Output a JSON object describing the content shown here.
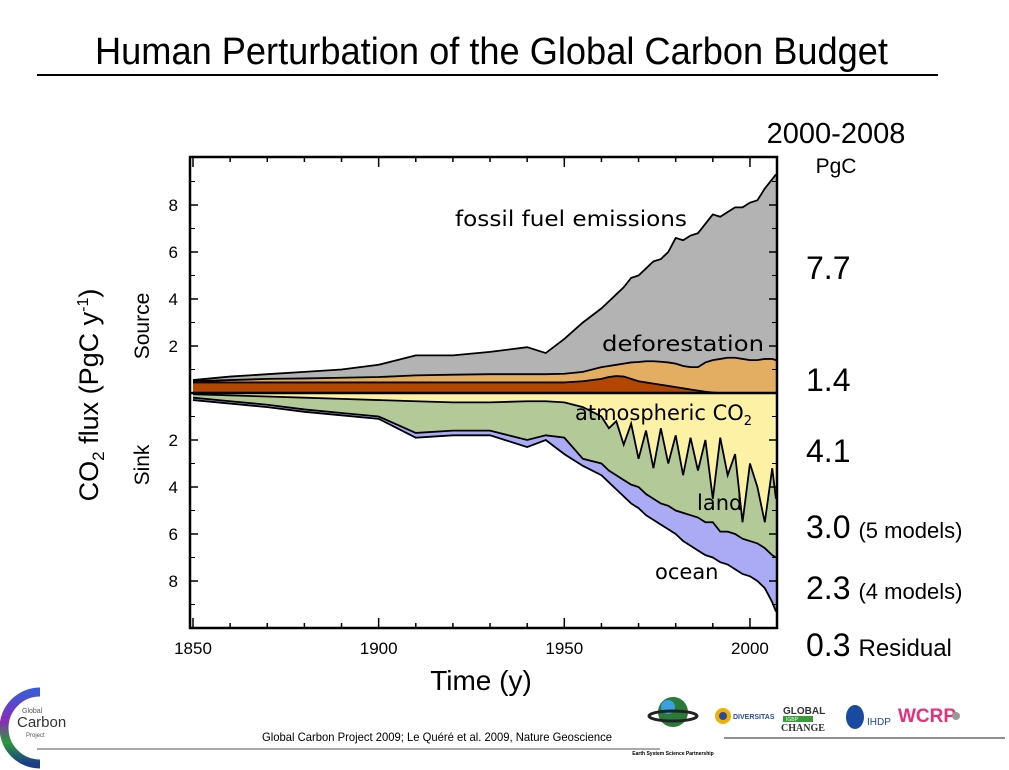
{
  "title": "Human Perturbation of the Global Carbon Budget",
  "chart_data": {
    "type": "area",
    "stacked": true,
    "xlabel": "Time (y)",
    "ylabel": {
      "main": "CO",
      "sub": "2",
      "rest": " flux (PgC y",
      "sup": "-1",
      "end": ")"
    },
    "ylabel_source": "Source",
    "ylabel_sink": "Sink",
    "xlim": [
      1850,
      2007
    ],
    "ylim": [
      -9.5,
      9.8
    ],
    "x_ticks": [
      1850,
      1900,
      1950,
      2000
    ],
    "y_ticks_source": [
      2,
      4,
      6,
      8
    ],
    "y_ticks_sink": [
      2,
      4,
      6,
      8
    ],
    "x": [
      1850,
      1860,
      1870,
      1880,
      1890,
      1900,
      1910,
      1920,
      1930,
      1940,
      1945,
      1950,
      1955,
      1960,
      1962,
      1964,
      1966,
      1968,
      1970,
      1972,
      1974,
      1976,
      1978,
      1980,
      1982,
      1984,
      1986,
      1988,
      1990,
      1992,
      1994,
      1996,
      1998,
      2000,
      2002,
      2004,
      2006,
      2007
    ],
    "sources": [
      {
        "color": "#b34700",
        "values": [
          0.45,
          0.45,
          0.45,
          0.45,
          0.45,
          0.45,
          0.45,
          0.45,
          0.45,
          0.45,
          0.45,
          0.45,
          0.5,
          0.6,
          0.68,
          0.72,
          0.7,
          0.6,
          0.5,
          0.45,
          0.4,
          0.35,
          0.3,
          0.25,
          0.2,
          0.15,
          0.1,
          0.05,
          0.02,
          0,
          0,
          0,
          0,
          0,
          0,
          0,
          0,
          0
        ]
      },
      {
        "name": "deforestation",
        "color": "#e3ad62",
        "values": [
          0.05,
          0.1,
          0.15,
          0.17,
          0.2,
          0.23,
          0.3,
          0.33,
          0.35,
          0.35,
          0.35,
          0.37,
          0.4,
          0.5,
          0.47,
          0.48,
          0.55,
          0.7,
          0.82,
          0.9,
          0.95,
          0.98,
          1.0,
          1.0,
          0.95,
          0.95,
          1.0,
          1.25,
          1.38,
          1.45,
          1.5,
          1.5,
          1.45,
          1.4,
          1.4,
          1.45,
          1.45,
          1.4
        ]
      },
      {
        "name": "fossil fuel emissions",
        "color": "#b3b3b3",
        "values": [
          0.05,
          0.15,
          0.2,
          0.28,
          0.35,
          0.52,
          0.85,
          0.82,
          0.95,
          1.15,
          0.9,
          1.48,
          2.1,
          2.5,
          2.75,
          3.0,
          3.25,
          3.6,
          3.68,
          3.95,
          4.25,
          4.37,
          4.7,
          5.35,
          5.35,
          5.6,
          5.7,
          5.9,
          6.2,
          6.05,
          6.2,
          6.4,
          6.45,
          6.7,
          6.8,
          7.25,
          7.65,
          7.9
        ]
      }
    ],
    "sinks": [
      {
        "name": "atmospheric CO2",
        "label_main": "atmospheric CO",
        "label_sub": "2",
        "color": "#fdf1a6",
        "values": [
          0.05,
          0.1,
          0.15,
          0.2,
          0.25,
          0.3,
          0.35,
          0.4,
          0.4,
          0.35,
          0.35,
          0.4,
          0.6,
          1.0,
          1.5,
          1.2,
          2.2,
          1.3,
          2.8,
          1.6,
          3.2,
          1.5,
          3.0,
          1.8,
          3.5,
          1.9,
          3.3,
          2.0,
          4.5,
          1.9,
          3.5,
          2.6,
          5.5,
          3.0,
          4.0,
          5.5,
          3.2,
          4.5
        ]
      },
      {
        "name": "land",
        "color": "#b3c997",
        "values": [
          0.15,
          0.25,
          0.35,
          0.5,
          0.6,
          0.7,
          1.35,
          1.2,
          1.2,
          1.65,
          1.45,
          1.5,
          2.2,
          2.0,
          1.8,
          2.3,
          1.5,
          2.6,
          1.2,
          2.7,
          1.3,
          3.2,
          1.8,
          3.2,
          1.6,
          3.3,
          2.0,
          3.5,
          1.0,
          4.0,
          2.4,
          3.4,
          0.7,
          3.3,
          2.4,
          1.1,
          3.7,
          2.5
        ]
      },
      {
        "name": "ocean",
        "color": "#aaaaf5",
        "values": [
          0.1,
          0.1,
          0.1,
          0.1,
          0.1,
          0.1,
          0.2,
          0.2,
          0.2,
          0.3,
          0.2,
          0.7,
          0.3,
          0.5,
          0.5,
          0.6,
          0.7,
          0.8,
          0.9,
          0.9,
          0.9,
          0.9,
          1.0,
          1.0,
          1.2,
          1.3,
          1.4,
          1.4,
          1.5,
          1.3,
          1.4,
          1.5,
          1.5,
          1.5,
          1.6,
          1.7,
          2.0,
          2.3
        ]
      }
    ],
    "summary": {
      "period": "2000-2008",
      "unit": "PgC",
      "fossil": "7.7",
      "deforestation": "1.4",
      "atmosphere": "4.1",
      "land": "3.0",
      "land_note": "(5 models)",
      "ocean": "2.3",
      "ocean_note": "(4 models)",
      "residual": "0.3",
      "residual_label": "Residual"
    }
  },
  "footer": {
    "citation": "Global Carbon Project 2009; Le Quéré et al. 2009, Nature Geoscience",
    "logo_gcp": [
      "Global",
      "Carbon",
      "Project"
    ],
    "logo_essp": "Earth System Science Partnership",
    "logo_diversitas": "DIVERSITAS",
    "logo_igbp": [
      "GLOBAL",
      "IGBP",
      "CHANGE"
    ],
    "logo_ihdp": "IHDP",
    "logo_wcrp": "WCRP"
  }
}
